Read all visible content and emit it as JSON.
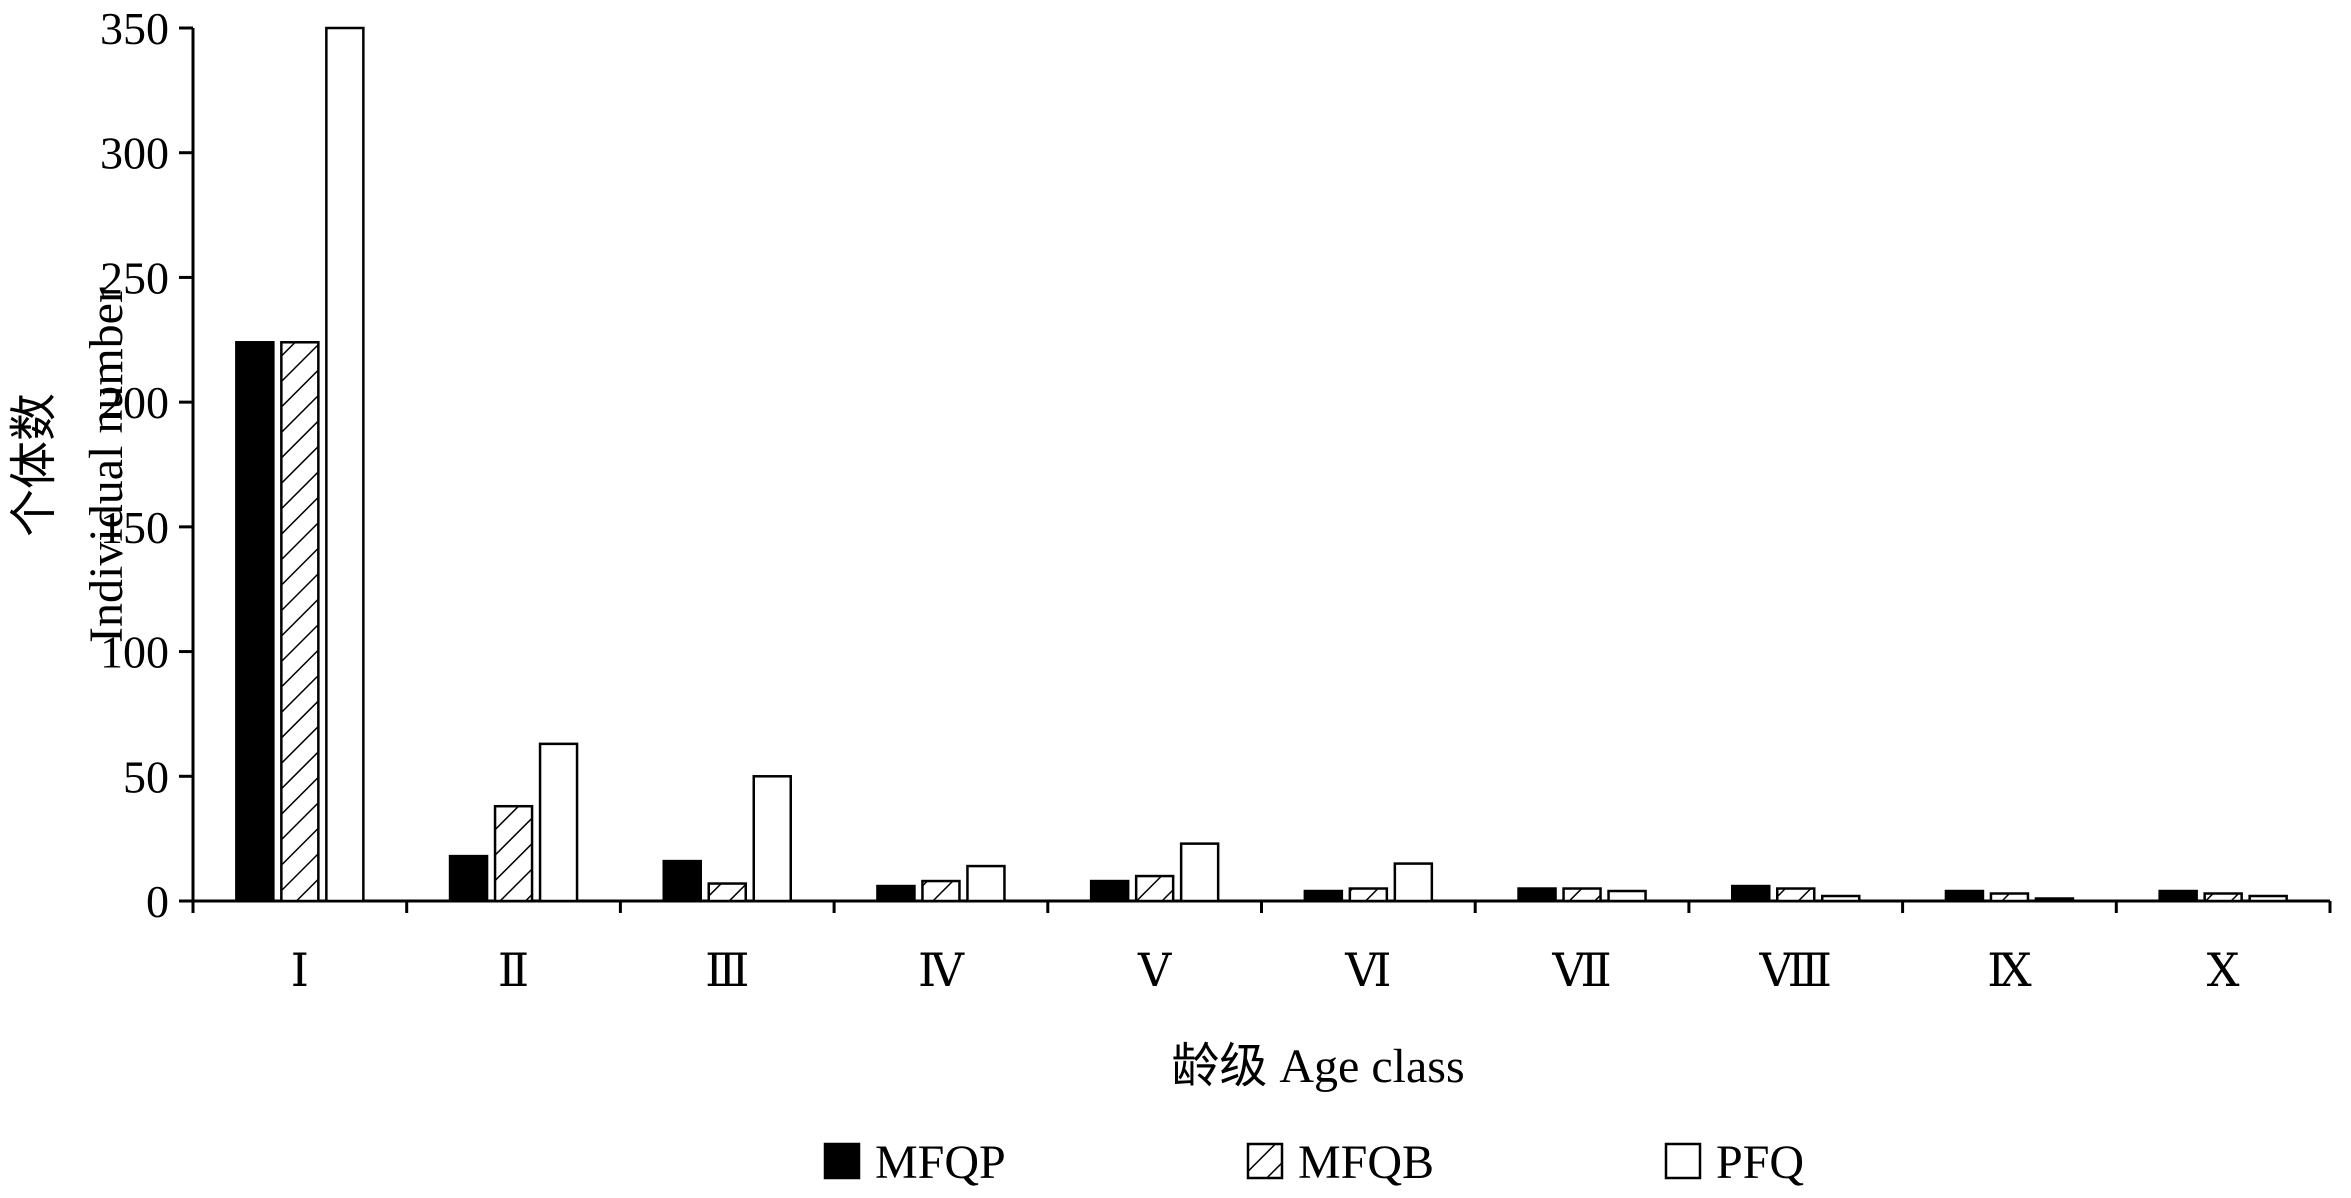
{
  "chart_data": {
    "type": "bar",
    "xlabel": "龄级  Age class",
    "ylabel": [
      "个体数",
      "Individual number"
    ],
    "ylim": [
      0,
      350
    ],
    "yticks": [
      "0",
      "50",
      "100",
      "150",
      "200",
      "250",
      "300",
      "350"
    ],
    "categories": [
      "Ⅰ",
      "Ⅱ",
      "Ⅲ",
      "Ⅳ",
      "Ⅴ",
      "Ⅵ",
      "Ⅶ",
      "Ⅷ",
      "Ⅸ",
      "Ⅹ"
    ],
    "series": [
      {
        "name": "MFQP",
        "fill": "solid-black",
        "values": [
          224,
          18,
          16,
          6,
          8,
          4,
          5,
          6,
          4,
          4
        ]
      },
      {
        "name": "MFQB",
        "fill": "diagonal-hatch",
        "values": [
          224,
          38,
          7,
          8,
          10,
          5,
          5,
          5,
          3,
          3
        ]
      },
      {
        "name": "PFQ",
        "fill": "white",
        "values": [
          350,
          63,
          50,
          14,
          23,
          15,
          4,
          2,
          1,
          2
        ]
      }
    ],
    "legend": {
      "placement": "bottom"
    },
    "grid": false,
    "colors": {
      "bar_edge": "#000000",
      "solid": "#000000",
      "open": "#ffffff"
    }
  }
}
